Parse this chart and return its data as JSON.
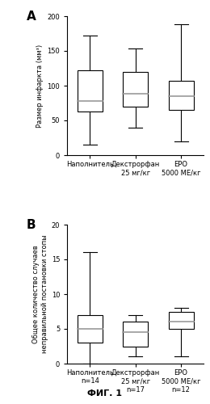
{
  "panel_A": {
    "label": "A",
    "ylabel": "Размер инфаркта (мм³)",
    "ylim": [
      0,
      200
    ],
    "yticks": [
      0,
      50,
      100,
      150,
      200
    ],
    "boxes": [
      {
        "label": "Наполнитель",
        "whisker_low": 15,
        "q1": 63,
        "median": 78,
        "q3": 122,
        "whisker_high": 172
      },
      {
        "label": "Декстрорфан\n25 мг/кг",
        "whisker_low": 40,
        "q1": 70,
        "median": 88,
        "q3": 120,
        "whisker_high": 153
      },
      {
        "label": "ЕРО\n5000 МЕ/кг",
        "whisker_low": 20,
        "q1": 65,
        "median": 85,
        "q3": 107,
        "whisker_high": 188
      }
    ]
  },
  "panel_B": {
    "label": "B",
    "ylabel": "Общее количество случаев\nнеправильной постановки стопы",
    "ylim": [
      0,
      20
    ],
    "yticks": [
      0,
      5,
      10,
      15,
      20
    ],
    "boxes": [
      {
        "label": "Наполнитель\nn=14",
        "whisker_low": 0,
        "q1": 3,
        "median": 5,
        "q3": 7,
        "whisker_high": 16
      },
      {
        "label": "Декстрорфан\n25 мг/кг\nn=17",
        "whisker_low": 1,
        "q1": 2.5,
        "median": 4.5,
        "q3": 6,
        "whisker_high": 7
      },
      {
        "label": "ЕРО\n5000 МЕ/кг\nn=12",
        "whisker_low": 1,
        "q1": 5,
        "median": 6,
        "q3": 7.5,
        "whisker_high": 8
      }
    ]
  },
  "figure_label": "ФИГ. 1",
  "background_color": "#ffffff",
  "box_color": "#ffffff",
  "box_edgecolor": "#000000",
  "median_color": "#999999",
  "whisker_color": "#000000",
  "box_width": 0.55
}
